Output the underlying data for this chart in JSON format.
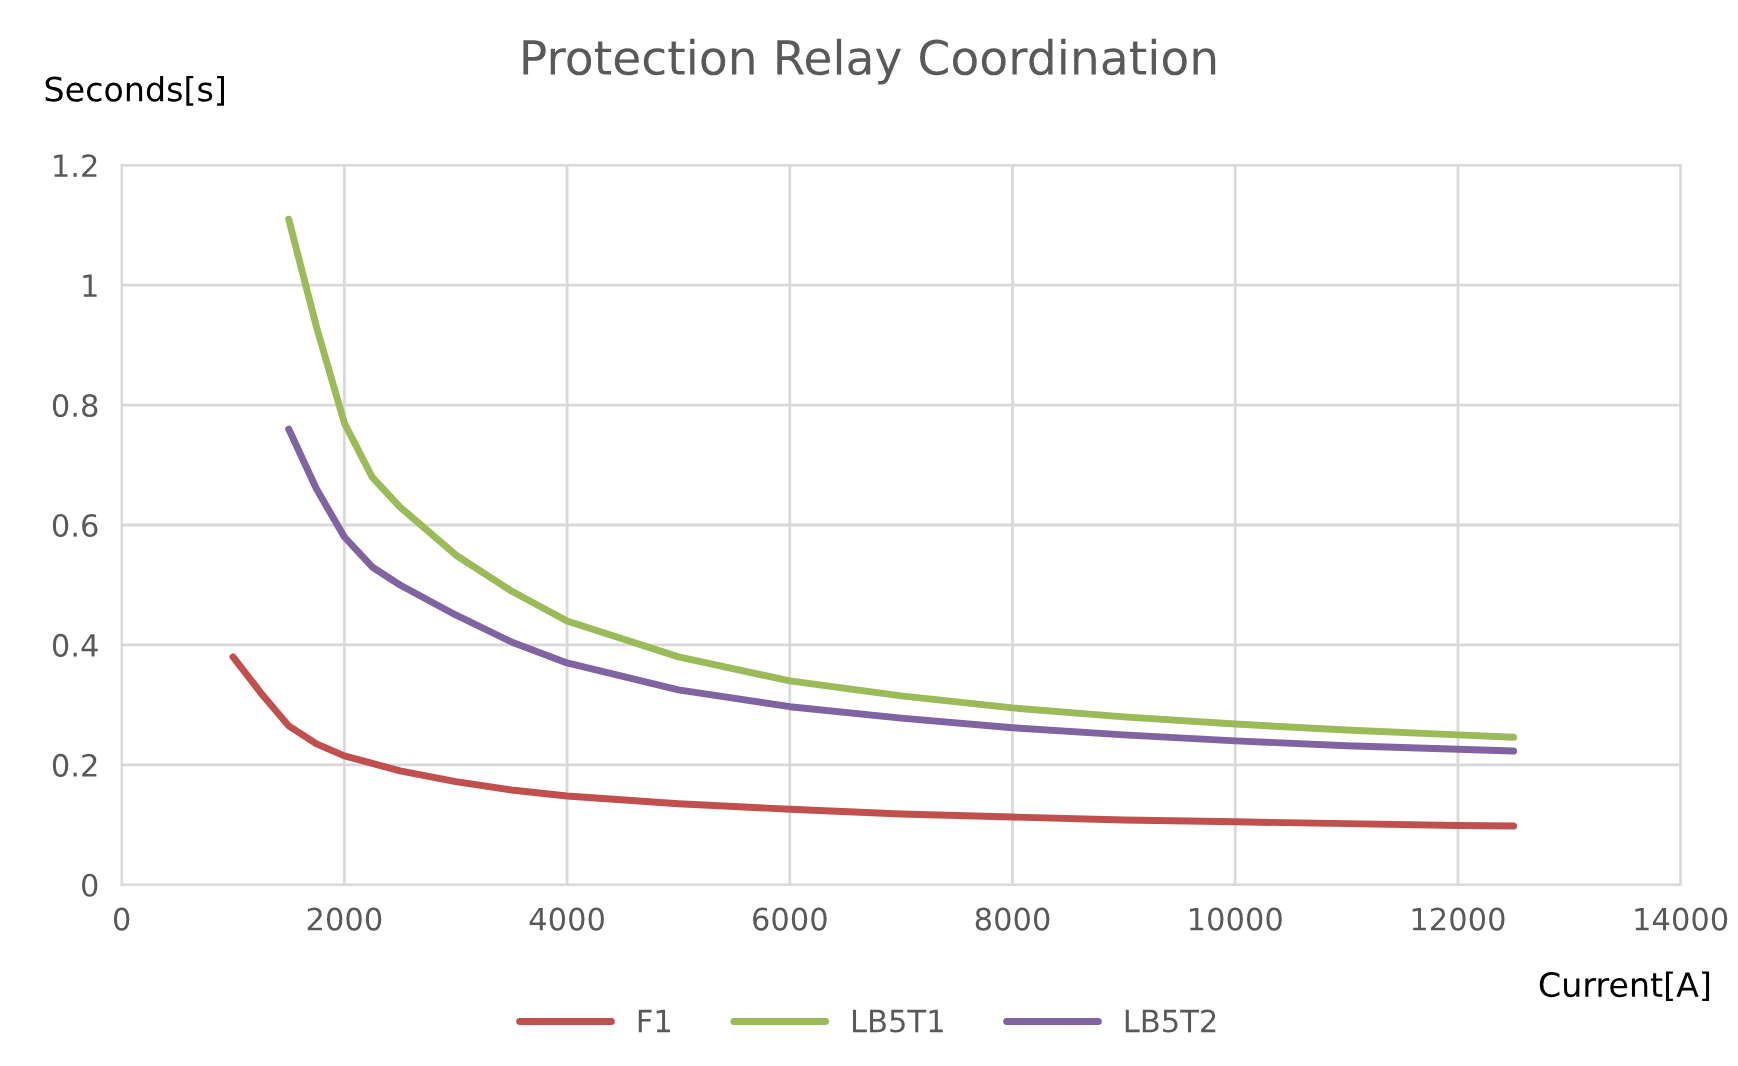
{
  "chart_data": {
    "type": "line",
    "title": "Protection Relay Coordination",
    "xlabel": "Current[A]",
    "ylabel": "Seconds[s]",
    "xlim": [
      0,
      14000
    ],
    "xticks": [
      0,
      2000,
      4000,
      6000,
      8000,
      10000,
      12000,
      14000
    ],
    "ylim": [
      0,
      1.2
    ],
    "yticks": [
      0,
      0.2,
      0.4,
      0.6,
      0.8,
      1,
      1.2
    ],
    "grid": true,
    "legend": "bottom",
    "marker": "none",
    "line_style": "solid",
    "series": [
      {
        "name": "F1",
        "color": "#c0504d",
        "x": [
          1000,
          1250,
          1500,
          1750,
          2000,
          2500,
          3000,
          3500,
          4000,
          5000,
          6000,
          7000,
          8000,
          9000,
          10000,
          11000,
          12000,
          12500
        ],
        "values": [
          0.38,
          0.32,
          0.265,
          0.235,
          0.215,
          0.19,
          0.172,
          0.158,
          0.148,
          0.135,
          0.126,
          0.118,
          0.113,
          0.108,
          0.105,
          0.102,
          0.099,
          0.098
        ]
      },
      {
        "name": "LB5T1",
        "color": "#9bbb59",
        "x": [
          1500,
          1750,
          2000,
          2250,
          2500,
          3000,
          3500,
          4000,
          5000,
          6000,
          7000,
          8000,
          9000,
          10000,
          11000,
          12000,
          12500
        ],
        "values": [
          1.11,
          0.93,
          0.77,
          0.68,
          0.63,
          0.55,
          0.49,
          0.44,
          0.38,
          0.34,
          0.315,
          0.295,
          0.28,
          0.268,
          0.258,
          0.25,
          0.246
        ]
      },
      {
        "name": "LB5T2",
        "color": "#8064a2",
        "x": [
          1500,
          1750,
          2000,
          2250,
          2500,
          3000,
          3500,
          4000,
          5000,
          6000,
          7000,
          8000,
          9000,
          10000,
          11000,
          12000,
          12500
        ],
        "values": [
          0.76,
          0.66,
          0.58,
          0.53,
          0.5,
          0.45,
          0.405,
          0.37,
          0.325,
          0.297,
          0.278,
          0.262,
          0.25,
          0.24,
          0.232,
          0.226,
          0.223
        ]
      }
    ]
  }
}
